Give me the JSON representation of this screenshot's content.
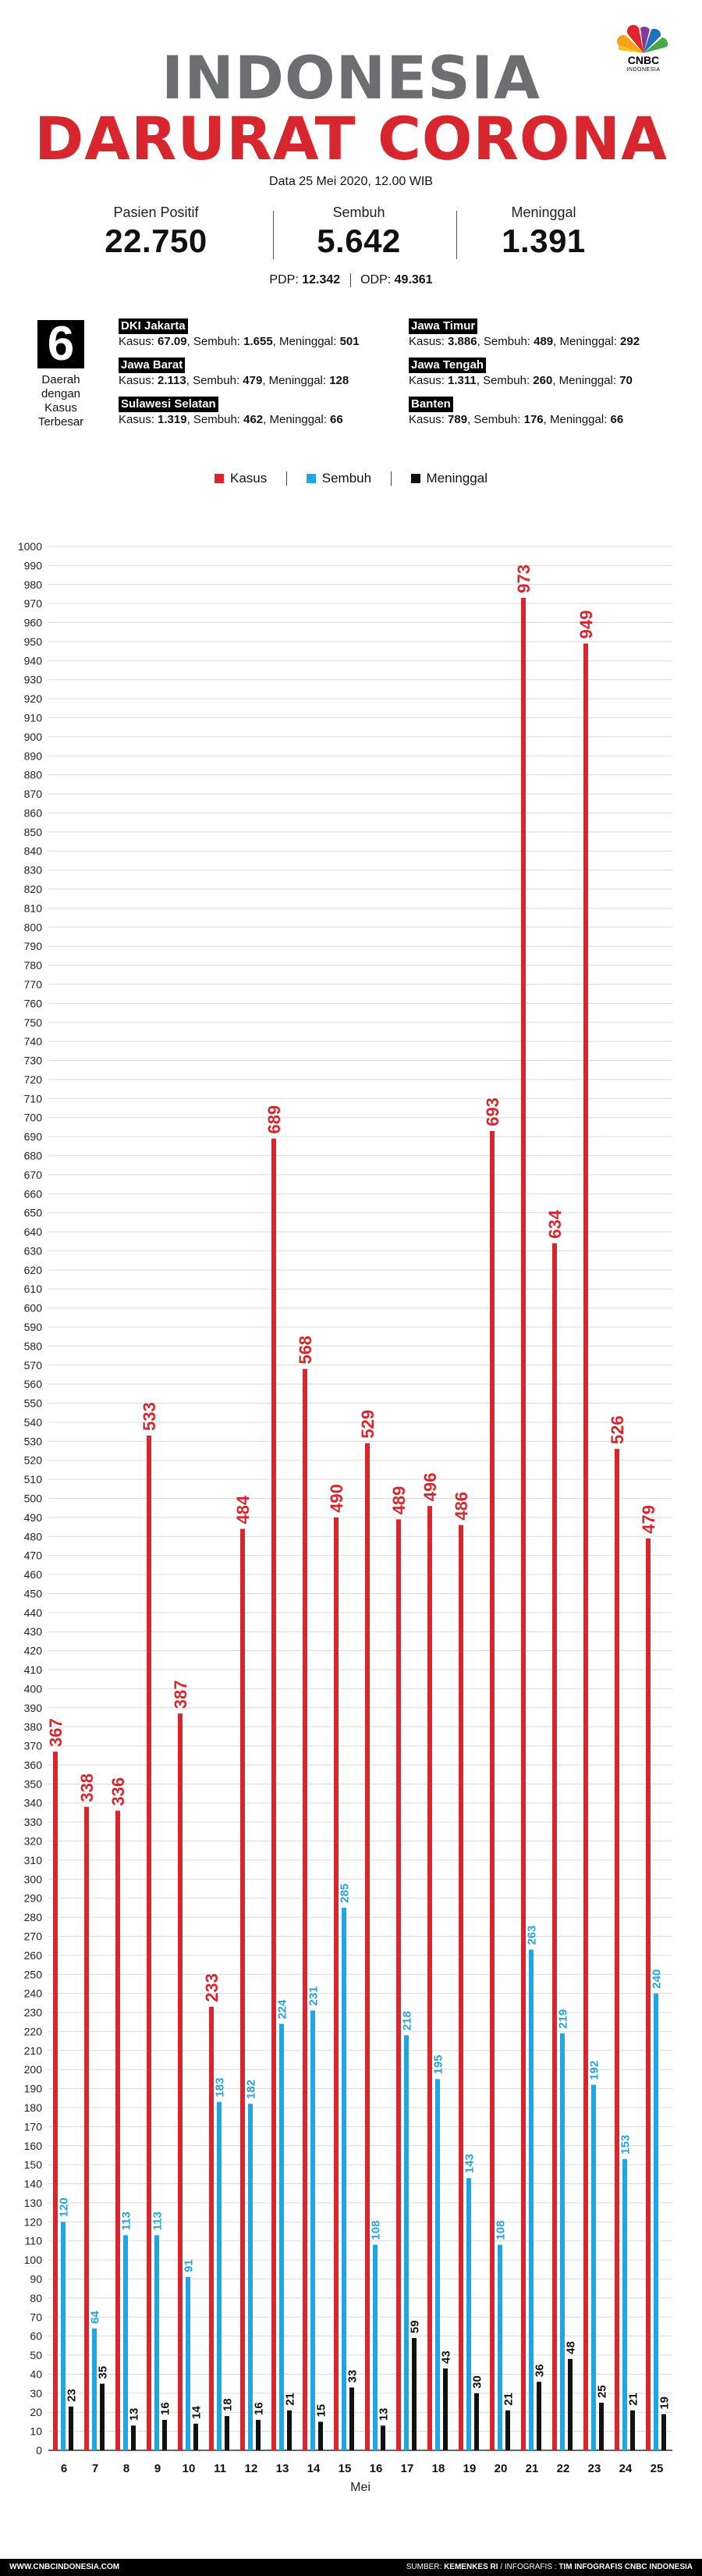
{
  "header": {
    "title_line1": "INDONESIA",
    "title_line2": "DARURAT CORONA",
    "date": "Data 25 Mei 2020, 12.00 WIB"
  },
  "logo": {
    "text": "CNBC",
    "subtext": "INDONESIA"
  },
  "stats": {
    "positive_label": "Pasien Positif",
    "positive_value": "22.750",
    "recovered_label": "Sembuh",
    "recovered_value": "5.642",
    "deaths_label": "Meninggal",
    "deaths_value": "1.391",
    "pdp_label": "PDP:",
    "pdp_value": "12.342",
    "odp_label": "ODP:",
    "odp_value": "49.361"
  },
  "regions": {
    "count": "6",
    "caption_lines": [
      "Daerah",
      "dengan",
      "Kasus",
      "Terbesar"
    ],
    "kasus_label": "Kasus:",
    "sembuh_label": ", Sembuh:",
    "meninggal_label": ", Meninggal:",
    "items": [
      {
        "name": "DKI Jakarta",
        "kasus": "67.09",
        "sembuh": "1.655",
        "meninggal": "501"
      },
      {
        "name": "Jawa Timur",
        "kasus": "3.886",
        "sembuh": "489",
        "meninggal": "292"
      },
      {
        "name": "Jawa Barat",
        "kasus": "2.113",
        "sembuh": "479",
        "meninggal": "128"
      },
      {
        "name": "Jawa Tengah",
        "kasus": "1.311",
        "sembuh": "260",
        "meninggal": "70"
      },
      {
        "name": "Sulawesi Selatan",
        "kasus": "1.319",
        "sembuh": "462",
        "meninggal": "66"
      },
      {
        "name": "Banten",
        "kasus": "789",
        "sembuh": "176",
        "meninggal": "66"
      }
    ]
  },
  "footer": {
    "website": "WWW.CNBCINDONESIA.COM",
    "source_label": "SUMBER:",
    "source": "KEMENKES RI",
    "infographic_label": "/ INFOGRAFIS :",
    "infographic": "TIM INFOGRAFIS CNBC INDONESIA"
  },
  "colors": {
    "kasus": "#d7262e",
    "sembuh": "#1ea7e1",
    "meninggal": "#111111",
    "title_gray": "#6d6e71"
  },
  "chart_data": {
    "type": "bar",
    "xlabel": "Mei",
    "ylabel": "",
    "ylim": [
      0,
      1000
    ],
    "ytick_step": 10,
    "grid": true,
    "legend_position": "top-center",
    "categories": [
      "6",
      "7",
      "8",
      "9",
      "10",
      "11",
      "12",
      "13",
      "14",
      "15",
      "16",
      "17",
      "18",
      "19",
      "20",
      "21",
      "22",
      "23",
      "24",
      "25"
    ],
    "series": [
      {
        "name": "Kasus",
        "color": "#d7262e",
        "values": [
          367,
          338,
          336,
          533,
          387,
          233,
          484,
          689,
          568,
          490,
          529,
          489,
          496,
          486,
          693,
          973,
          634,
          949,
          526,
          479
        ]
      },
      {
        "name": "Sembuh",
        "color": "#1ea7e1",
        "values": [
          120,
          64,
          113,
          113,
          91,
          183,
          182,
          224,
          231,
          285,
          108,
          218,
          195,
          143,
          108,
          263,
          219,
          192,
          153,
          240
        ]
      },
      {
        "name": "Meninggal",
        "color": "#111111",
        "values": [
          23,
          35,
          13,
          16,
          14,
          18,
          16,
          21,
          15,
          33,
          13,
          59,
          43,
          30,
          21,
          36,
          48,
          25,
          21,
          19
        ]
      }
    ]
  }
}
